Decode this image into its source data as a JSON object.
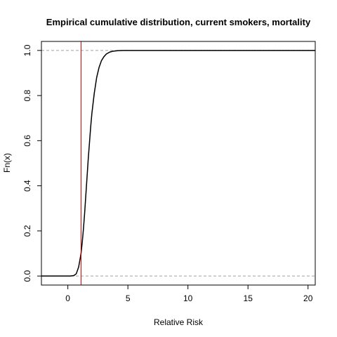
{
  "chart_data": {
    "type": "line",
    "title": "Empirical cumulative distribution, current smokers, mortality",
    "xlabel": "Relative Risk",
    "ylabel": "Fn(x)",
    "xlim": [
      -2.2,
      20.6
    ],
    "ylim": [
      -0.04,
      1.04
    ],
    "x_ticks": [
      0,
      5,
      10,
      15,
      20
    ],
    "y_ticks": [
      0.0,
      0.2,
      0.4,
      0.6,
      0.8,
      1.0
    ],
    "x_tick_labels": [
      "0",
      "5",
      "10",
      "15",
      "20"
    ],
    "y_tick_labels": [
      "0.0",
      "0.2",
      "0.4",
      "0.6",
      "0.8",
      "1.0"
    ],
    "reference_hlines": [
      0,
      1
    ],
    "reference_vline": 1.1,
    "grid": false,
    "legend": "none",
    "series": [
      {
        "x": [
          -2.2,
          0.2,
          0.5,
          0.7,
          0.9,
          1.0,
          1.1,
          1.2,
          1.3,
          1.4,
          1.5,
          1.6,
          1.7,
          1.8,
          1.9,
          2.0,
          2.2,
          2.4,
          2.6,
          2.8,
          3.0,
          3.2,
          3.5,
          3.8,
          4.2,
          4.6,
          5.0,
          6.0,
          8.5,
          20.6
        ],
        "y": [
          0.0,
          0.0,
          0.002,
          0.01,
          0.04,
          0.07,
          0.1,
          0.15,
          0.21,
          0.28,
          0.36,
          0.44,
          0.52,
          0.59,
          0.66,
          0.72,
          0.81,
          0.88,
          0.925,
          0.955,
          0.972,
          0.984,
          0.993,
          0.997,
          0.999,
          1.0,
          1.0,
          1.0,
          1.0,
          1.0
        ]
      }
    ],
    "colors": {
      "curve": "#000000",
      "reference_hlines": "#a0a0a0",
      "reference_vline": "#cc0000",
      "frame": "#000000"
    }
  }
}
